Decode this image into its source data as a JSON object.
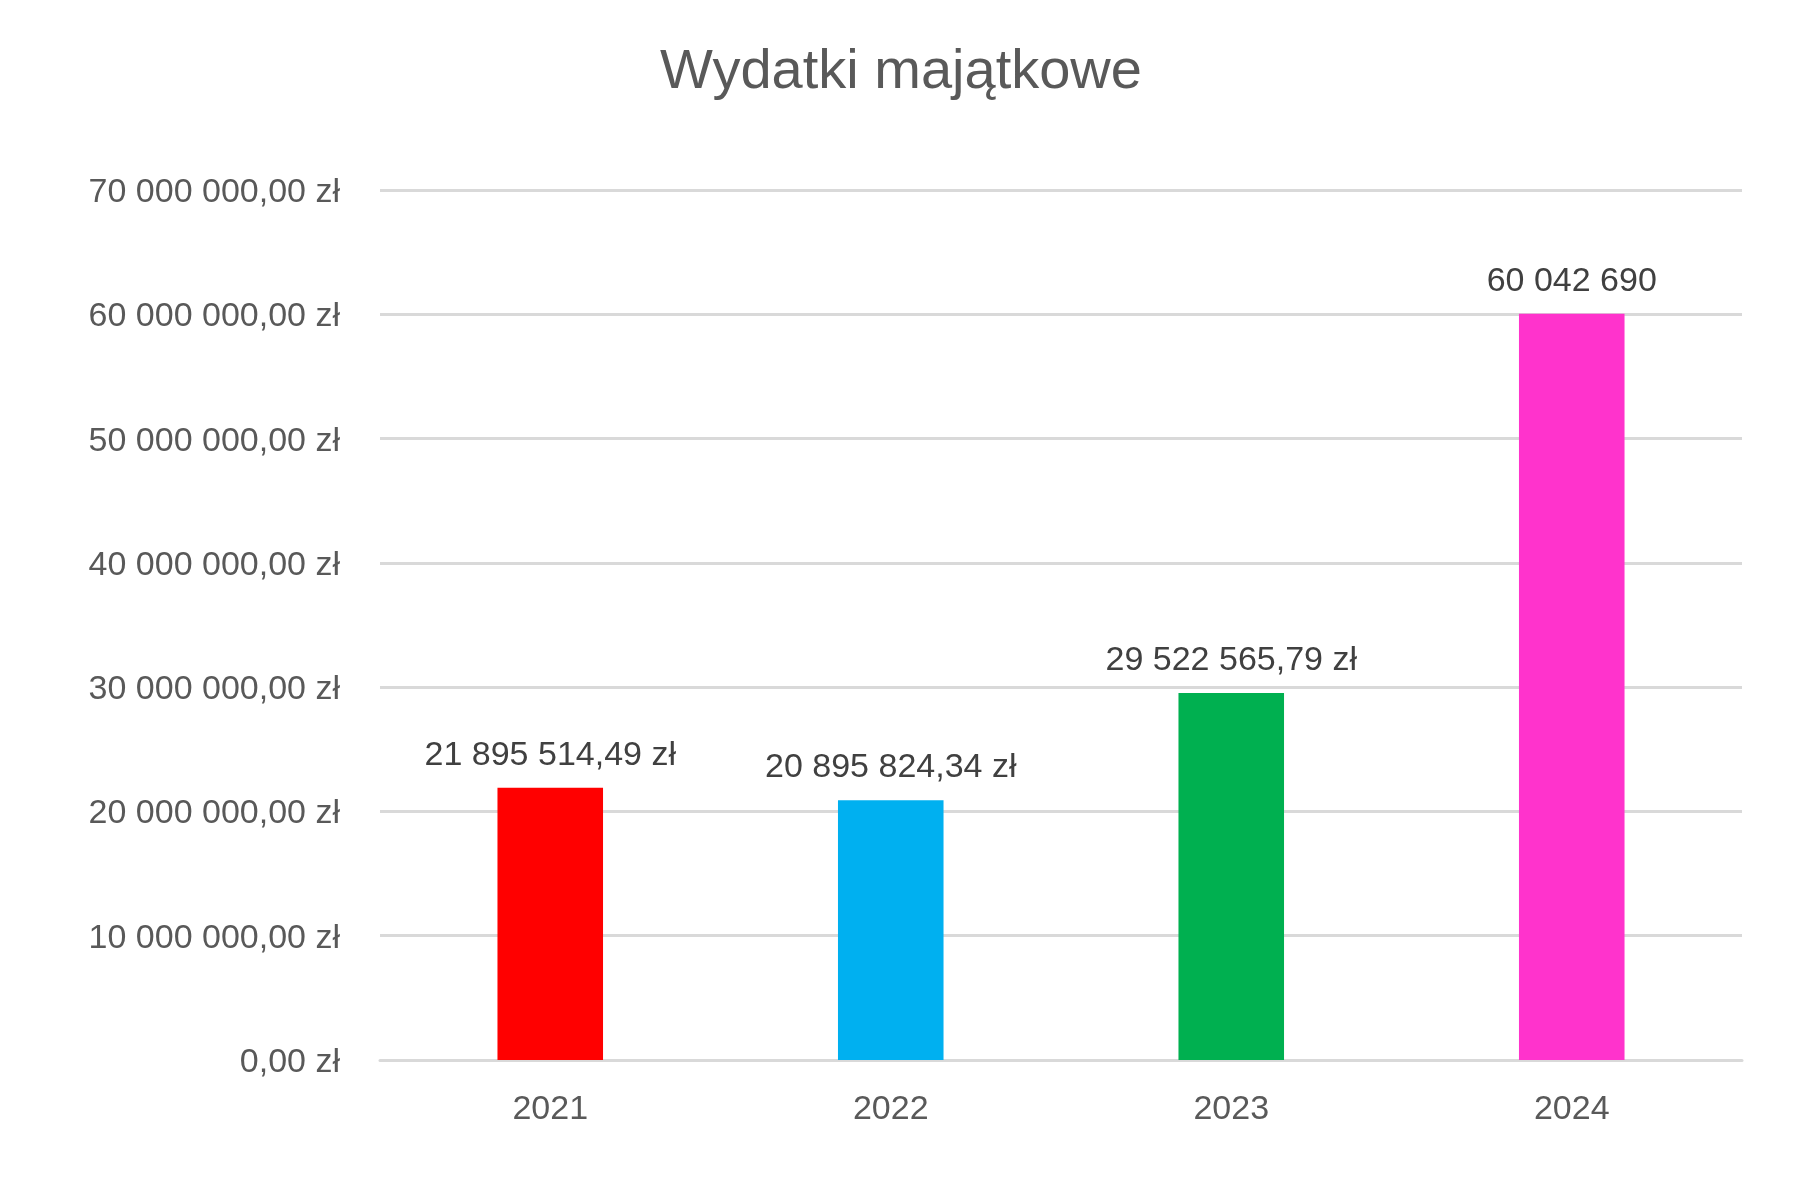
{
  "chart_data": {
    "type": "bar",
    "title": "Wydatki majątkowe",
    "categories": [
      "2021",
      "2022",
      "2023",
      "2024"
    ],
    "values": [
      21895514.49,
      20895824.34,
      29522565.79,
      60042690
    ],
    "colors": [
      "#ff0000",
      "#00b0f0",
      "#00b050",
      "#ff33cc"
    ],
    "value_labels": [
      "21 895 514,49 zł",
      "20 895 824,34 zł",
      "29 522 565,79 zł",
      "60 042 690"
    ],
    "ylim": [
      0,
      70000000
    ],
    "yticks": [
      {
        "value": 0,
        "label": "0,00 zł"
      },
      {
        "value": 10000000,
        "label": "10 000 000,00 zł"
      },
      {
        "value": 20000000,
        "label": "20 000 000,00 zł"
      },
      {
        "value": 30000000,
        "label": "30 000 000,00 zł"
      },
      {
        "value": 40000000,
        "label": "40 000 000,00 zł"
      },
      {
        "value": 50000000,
        "label": "50 000 000,00 zł"
      },
      {
        "value": 60000000,
        "label": "60 000 000,00 zł"
      },
      {
        "value": 70000000,
        "label": "70 000 000,00 zł"
      }
    ],
    "grid": "y"
  }
}
